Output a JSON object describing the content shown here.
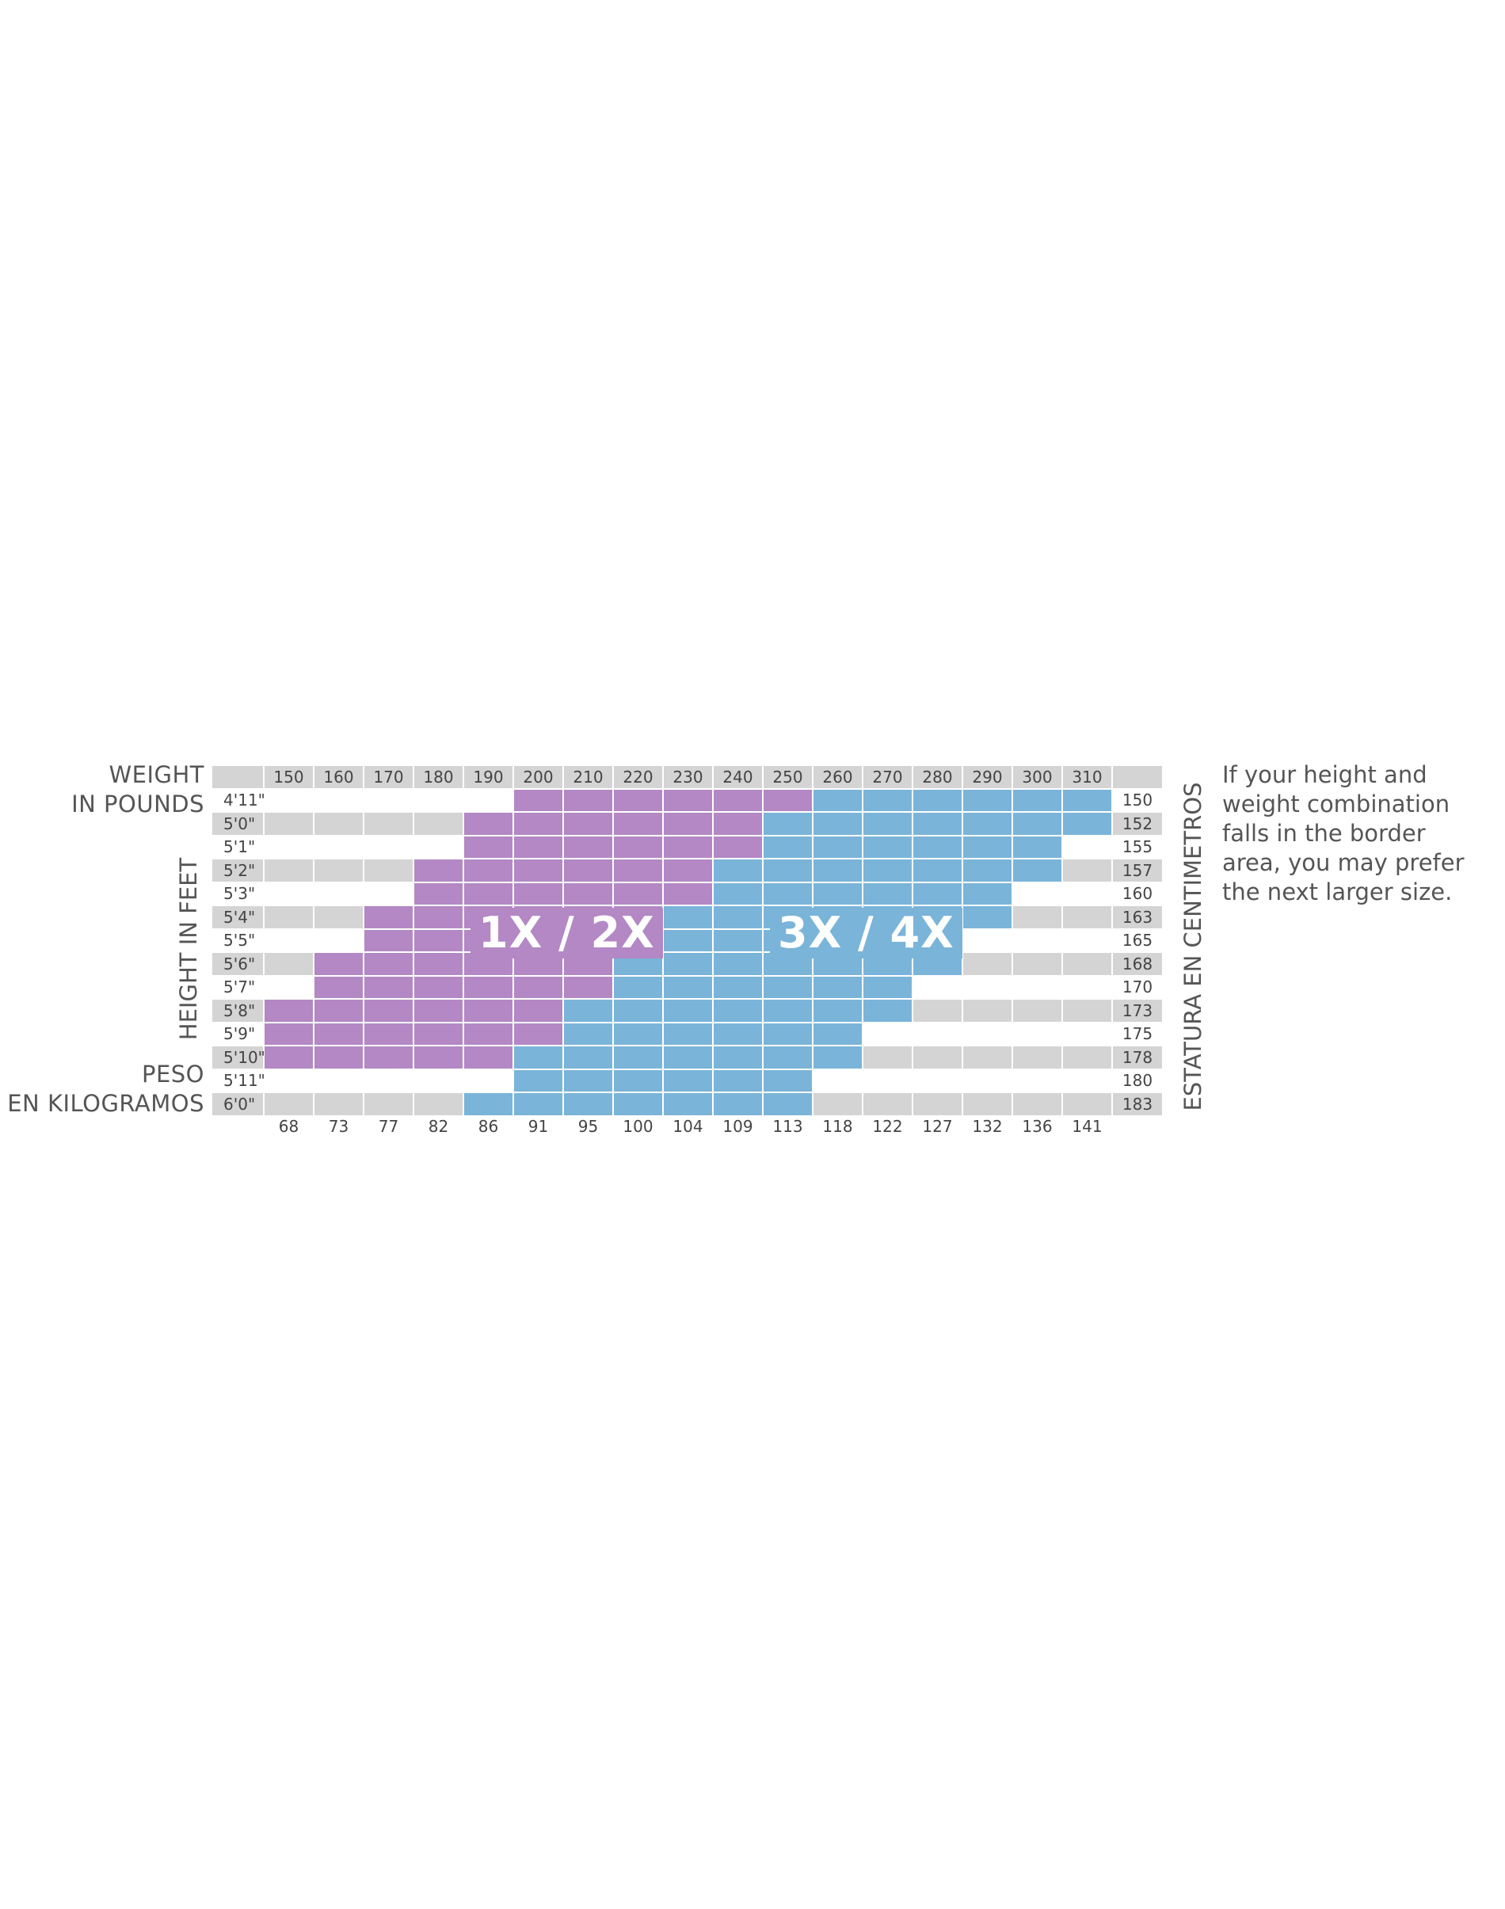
{
  "chart_data": {
    "type": "heatmap",
    "title": "",
    "xlabel": "WEIGHT IN POUNDS",
    "xlabel_secondary": "PESO EN KILOGRAMOS",
    "ylabel": "HEIGHT IN FEET",
    "ylabel_secondary": "ESTATURA EN CENTIMETROS",
    "weights_lb": [
      "150",
      "160",
      "170",
      "180",
      "190",
      "200",
      "210",
      "220",
      "230",
      "240",
      "250",
      "260",
      "270",
      "280",
      "290",
      "300",
      "310"
    ],
    "weights_kg": [
      "68",
      "73",
      "77",
      "82",
      "86",
      "91",
      "95",
      "100",
      "104",
      "109",
      "113",
      "118",
      "122",
      "127",
      "132",
      "136",
      "141"
    ],
    "zones": {
      "P": {
        "label": "1X / 2X",
        "color": "#b388c4"
      },
      "B": {
        "label": "3X / 4X",
        "color": "#7ab4d9"
      }
    },
    "rows": [
      {
        "height": "4'11\"",
        "cm": "150",
        "sizes": [
          "",
          "",
          "",
          "",
          "",
          "P",
          "P",
          "P",
          "P",
          "P",
          "P",
          "B",
          "B",
          "B",
          "B",
          "B",
          "B"
        ]
      },
      {
        "height": "5'0\"",
        "cm": "152",
        "sizes": [
          "",
          "",
          "",
          "",
          "P",
          "P",
          "P",
          "P",
          "P",
          "P",
          "B",
          "B",
          "B",
          "B",
          "B",
          "B",
          "B"
        ]
      },
      {
        "height": "5'1\"",
        "cm": "155",
        "sizes": [
          "",
          "",
          "",
          "",
          "P",
          "P",
          "P",
          "P",
          "P",
          "P",
          "B",
          "B",
          "B",
          "B",
          "B",
          "B",
          ""
        ]
      },
      {
        "height": "5'2\"",
        "cm": "157",
        "sizes": [
          "",
          "",
          "",
          "P",
          "P",
          "P",
          "P",
          "P",
          "P",
          "B",
          "B",
          "B",
          "B",
          "B",
          "B",
          "B",
          ""
        ]
      },
      {
        "height": "5'3\"",
        "cm": "160",
        "sizes": [
          "",
          "",
          "",
          "P",
          "P",
          "P",
          "P",
          "P",
          "P",
          "B",
          "B",
          "B",
          "B",
          "B",
          "B",
          "",
          ""
        ]
      },
      {
        "height": "5'4\"",
        "cm": "163",
        "sizes": [
          "",
          "",
          "P",
          "P",
          "P",
          "P",
          "P",
          "P",
          "B",
          "B",
          "B",
          "B",
          "B",
          "B",
          "B",
          "",
          ""
        ]
      },
      {
        "height": "5'5\"",
        "cm": "165",
        "sizes": [
          "",
          "",
          "P",
          "P",
          "P",
          "P",
          "P",
          "P",
          "B",
          "B",
          "B",
          "B",
          "B",
          "B",
          "",
          "",
          ""
        ]
      },
      {
        "height": "5'6\"",
        "cm": "168",
        "sizes": [
          "",
          "P",
          "P",
          "P",
          "P",
          "P",
          "P",
          "B",
          "B",
          "B",
          "B",
          "B",
          "B",
          "B",
          "",
          "",
          ""
        ]
      },
      {
        "height": "5'7\"",
        "cm": "170",
        "sizes": [
          "",
          "P",
          "P",
          "P",
          "P",
          "P",
          "P",
          "B",
          "B",
          "B",
          "B",
          "B",
          "B",
          "",
          "",
          "",
          ""
        ]
      },
      {
        "height": "5'8\"",
        "cm": "173",
        "sizes": [
          "P",
          "P",
          "P",
          "P",
          "P",
          "P",
          "B",
          "B",
          "B",
          "B",
          "B",
          "B",
          "B",
          "",
          "",
          "",
          ""
        ]
      },
      {
        "height": "5'9\"",
        "cm": "175",
        "sizes": [
          "P",
          "P",
          "P",
          "P",
          "P",
          "P",
          "B",
          "B",
          "B",
          "B",
          "B",
          "B",
          "",
          "",
          "",
          "",
          ""
        ]
      },
      {
        "height": "5'10\"",
        "cm": "178",
        "sizes": [
          "P",
          "P",
          "P",
          "P",
          "P",
          "B",
          "B",
          "B",
          "B",
          "B",
          "B",
          "B",
          "",
          "",
          "",
          "",
          ""
        ]
      },
      {
        "height": "5'11\"",
        "cm": "180",
        "sizes": [
          "",
          "",
          "",
          "",
          "",
          "B",
          "B",
          "B",
          "B",
          "B",
          "B",
          "",
          "",
          "",
          "",
          "",
          ""
        ]
      },
      {
        "height": "6'0\"",
        "cm": "183",
        "sizes": [
          "",
          "",
          "",
          "",
          "B",
          "B",
          "B",
          "B",
          "B",
          "B",
          "B",
          "",
          "",
          "",
          "",
          "",
          ""
        ]
      }
    ],
    "note": "If your height and weight combination falls in the border area, you may prefer the next larger size."
  },
  "labels": {
    "weight_line1": "WEIGHT",
    "weight_line2": "IN POUNDS",
    "peso_line1": "PESO",
    "peso_line2": "EN KILOGRAMOS",
    "height": "HEIGHT IN FEET",
    "estatura": "ESTATURA EN CENTIMETROS",
    "zone1": "1X / 2X",
    "zone2": "3X / 4X",
    "note_lines": [
      "If your height and",
      "weight combination",
      "falls in the border",
      "area, you may prefer",
      "the next larger size."
    ]
  }
}
